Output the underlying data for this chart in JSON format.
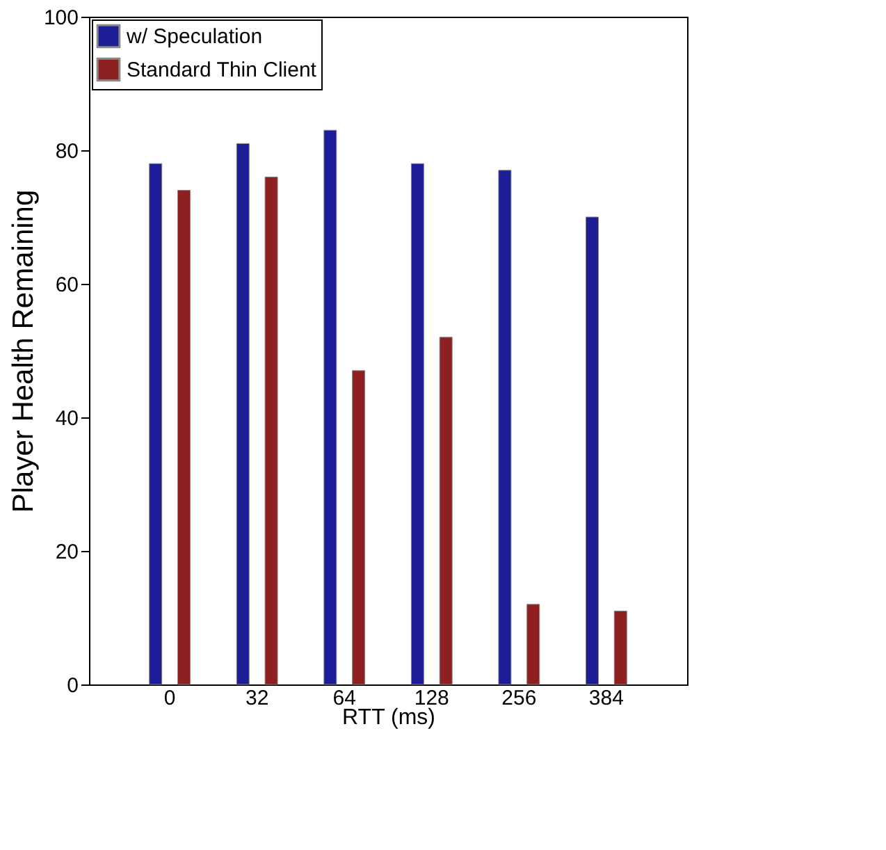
{
  "chart_data": {
    "type": "bar",
    "xlabel": "RTT (ms)",
    "ylabel": "Player Health Remaining",
    "categories": [
      "0",
      "32",
      "64",
      "128",
      "256",
      "384"
    ],
    "series": [
      {
        "name": "w/ Speculation",
        "color": "#1c1c96",
        "values": [
          78,
          81,
          83,
          78,
          77,
          70
        ]
      },
      {
        "name": "Standard Thin Client",
        "color": "#8e2020",
        "values": [
          74,
          76,
          47,
          52,
          12,
          11
        ]
      }
    ],
    "ylim": [
      0,
      100
    ],
    "yticks": [
      0,
      20,
      40,
      60,
      80,
      100
    ],
    "grid": false,
    "legend": "top left"
  }
}
